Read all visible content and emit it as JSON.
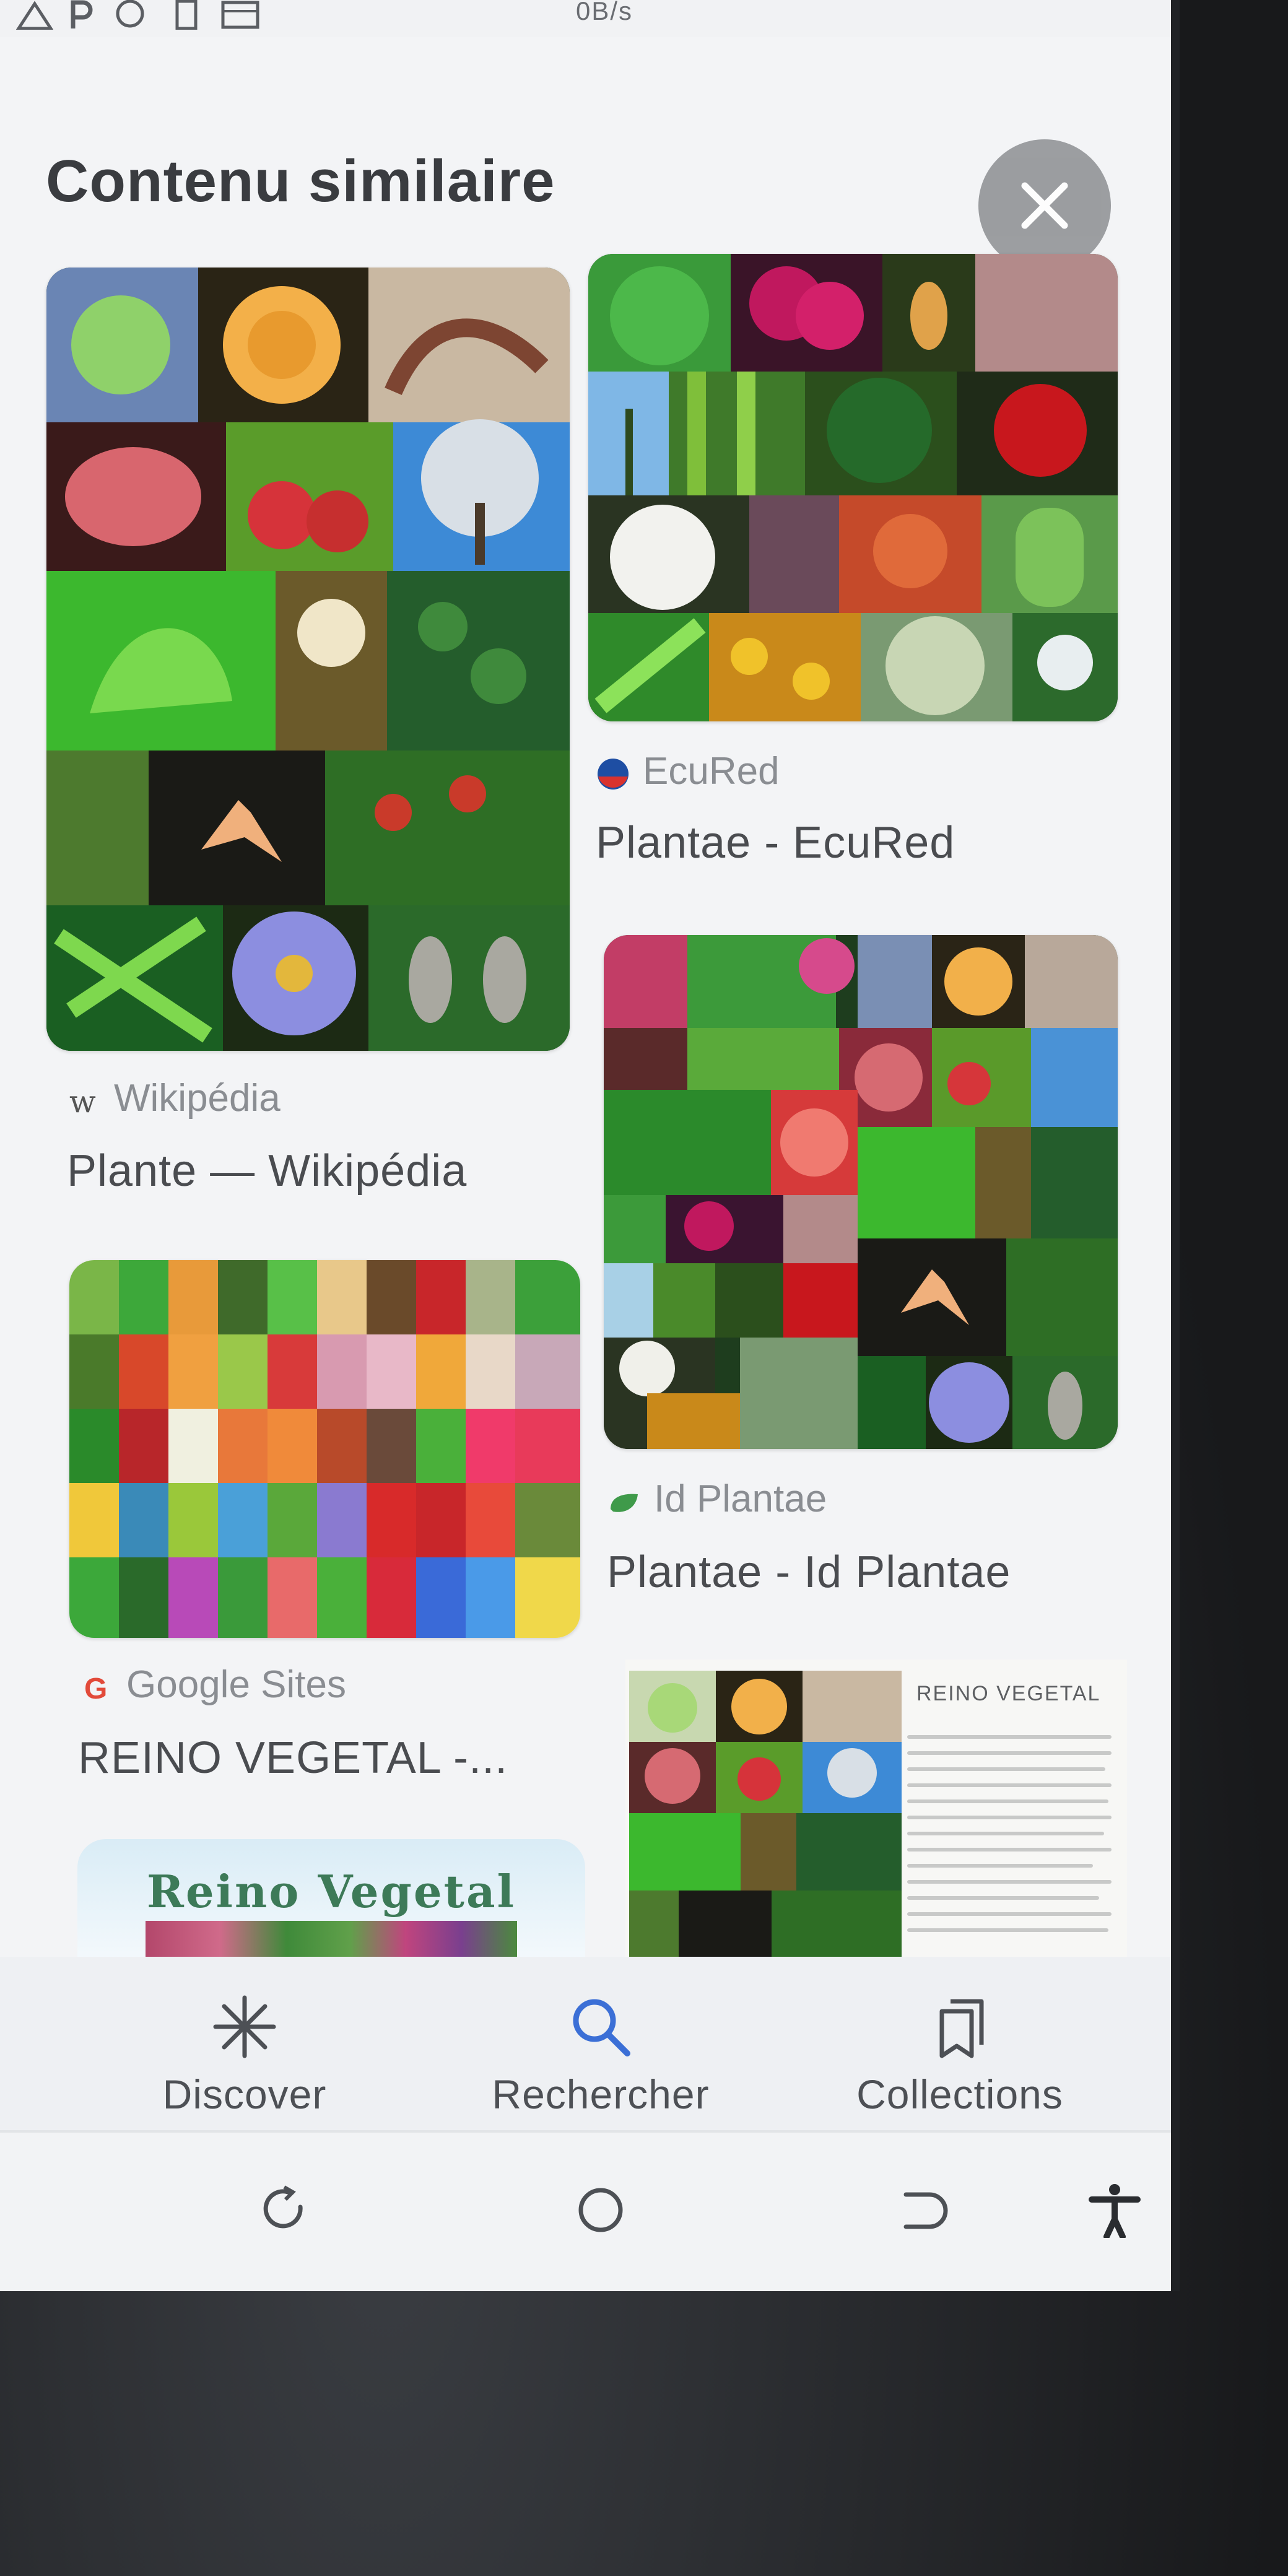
{
  "status_bar": {
    "icons": [
      "alert-triangle-icon",
      "parking-icon",
      "whatsapp-icon",
      "battery-icon",
      "screen-icon"
    ],
    "speed_text": "0B/s"
  },
  "panel": {
    "title": "Contenu similaire",
    "close_icon": "close-icon"
  },
  "results": [
    {
      "source": "Wikipédia",
      "source_icon": "wikipedia-w-icon",
      "caption": "Plante — Wikipédia"
    },
    {
      "source": "EcuRed",
      "source_icon": "ecured-logo-icon",
      "caption": "Plantae - EcuRed"
    },
    {
      "source": "Id Plantae",
      "source_icon": "leaf-icon",
      "caption": "Plantae - Id Plantae"
    },
    {
      "source": "Google Sites",
      "source_icon": "google-g-icon",
      "caption": "REINO VEGETAL -..."
    },
    {
      "doc_title": "REINO VEGETAL"
    },
    {
      "banner_title": "Reino Vegetal"
    }
  ],
  "bottom_nav": [
    {
      "label": "Discover",
      "icon": "asterisk-icon"
    },
    {
      "label": "Rechercher",
      "icon": "search-icon"
    },
    {
      "label": "Collections",
      "icon": "collections-icon"
    }
  ],
  "system_nav": [
    "recent-apps-icon",
    "home-icon",
    "back-icon",
    "accessibility-icon"
  ],
  "colors": {
    "accent_search": "#3b6fd6",
    "panel_bg": "#f3f4f6",
    "close_btn": "#8c8e92"
  }
}
